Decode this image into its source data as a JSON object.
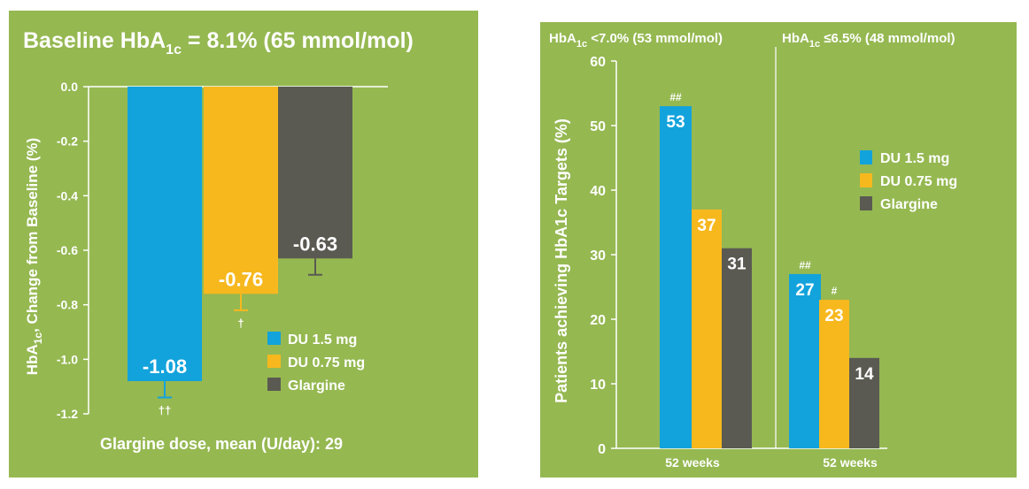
{
  "colors": {
    "panel_bg": "#95b851",
    "du15": "#12a3dc",
    "du075": "#f7b81e",
    "glargine": "#5a5a52",
    "axis": "#ffffff",
    "text": "#ffffff"
  },
  "chart_data": [
    {
      "type": "bar",
      "title": "Baseline HbA1c = 8.1% (65 mmol/mol)",
      "title_parts": {
        "prefix": "Baseline HbA",
        "sub": "1c",
        "suffix": " = 8.1% (65 mmol/mol)"
      },
      "ylabel": "HbA1c, Change from Baseline (%)",
      "ylabel_parts": {
        "prefix": "HbA",
        "sub": "1c",
        "suffix": ", Change from Baseline (%)"
      },
      "ylim": [
        -1.2,
        0.0
      ],
      "yticks": [
        0.0,
        -0.2,
        -0.4,
        -0.6,
        -0.8,
        -1.0,
        -1.2
      ],
      "ytick_labels": [
        "0.0",
        "-0.2",
        "-0.4",
        "-0.6",
        "-0.8",
        "-1.0",
        "-1.2"
      ],
      "grid": false,
      "legend_position": "bottom-right",
      "series": [
        {
          "name": "DU 1.5 mg",
          "value": -1.08,
          "label": "-1.08",
          "error": 0.06,
          "annotation": "††",
          "color": "#12a3dc"
        },
        {
          "name": "DU 0.75 mg",
          "value": -0.76,
          "label": "-0.76",
          "error": 0.06,
          "annotation": "†",
          "color": "#f7b81e"
        },
        {
          "name": "Glargine",
          "value": -0.63,
          "label": "-0.63",
          "error": 0.06,
          "annotation": "",
          "color": "#5a5a52"
        }
      ],
      "footnote": "Glargine dose, mean (U/day): 29"
    },
    {
      "type": "bar",
      "ylabel": "Patients achieving HbA1c Targets (%)",
      "ylim": [
        0,
        60
      ],
      "yticks": [
        0,
        10,
        20,
        30,
        40,
        50,
        60
      ],
      "ytick_labels": [
        "0",
        "10",
        "20",
        "30",
        "40",
        "50",
        "60"
      ],
      "grid": false,
      "legend_position": "right",
      "legend": [
        "DU 1.5 mg",
        "DU 0.75 mg",
        "Glargine"
      ],
      "groups": [
        {
          "header_parts": {
            "prefix": "HbA",
            "sub": "1c",
            "suffix": " <7.0% (53 mmol/mol)"
          },
          "xlabel": "52 weeks",
          "values": [
            53,
            37,
            31
          ],
          "labels": [
            "53",
            "37",
            "31"
          ],
          "annotations": [
            "##",
            "",
            ""
          ]
        },
        {
          "header_parts": {
            "prefix": "HbA",
            "sub": "1c",
            "suffix": " ≤6.5% (48 mmol/mol)"
          },
          "xlabel": "52 weeks",
          "values": [
            27,
            23,
            14
          ],
          "labels": [
            "27",
            "23",
            "14"
          ],
          "annotations": [
            "##",
            "#",
            ""
          ]
        }
      ],
      "series_colors": [
        "#12a3dc",
        "#f7b81e",
        "#5a5a52"
      ]
    }
  ]
}
